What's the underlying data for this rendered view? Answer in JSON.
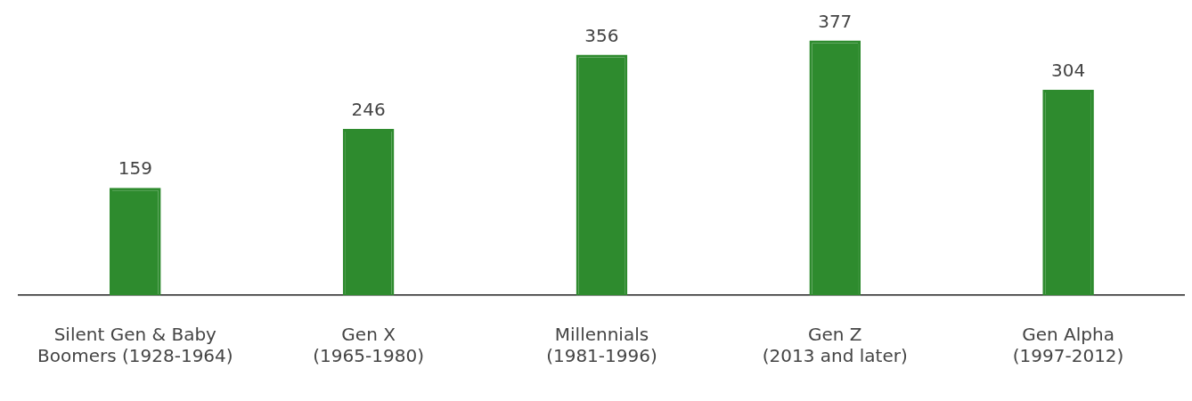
{
  "chart_data": {
    "type": "bar",
    "categories": [
      "Silent Gen & Baby\nBoomers (1928-1964)",
      "Gen X\n(1965-1980)",
      "Millennials\n(1981-1996)",
      "Gen Z\n(2013 and later)",
      "Gen Alpha\n(1997-2012)"
    ],
    "values": [
      159,
      246,
      356,
      377,
      304
    ],
    "color": "#2e8b2e",
    "data_labels": true,
    "grid": false,
    "legend": false
  }
}
